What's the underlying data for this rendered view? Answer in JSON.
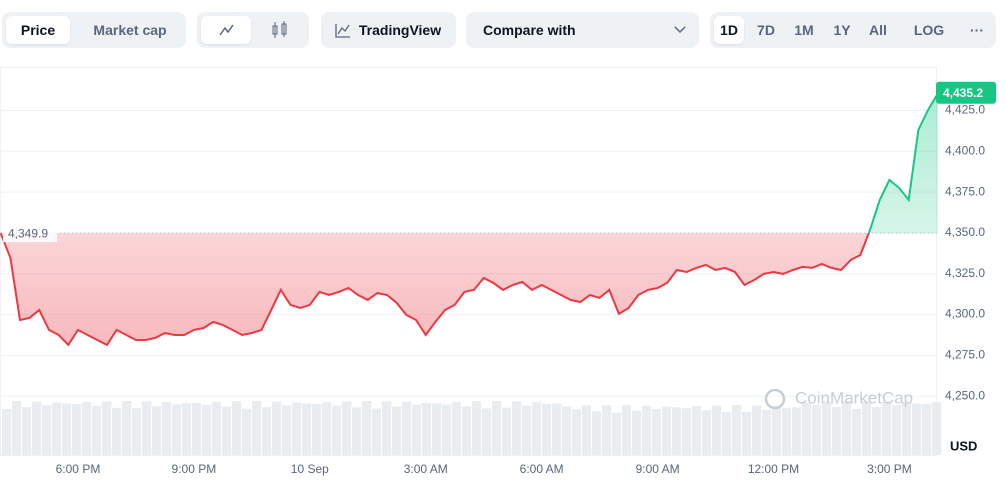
{
  "toolbar": {
    "tabs": [
      "Price",
      "Market cap"
    ],
    "tradingview": "TradingView",
    "compare": "Compare with",
    "ranges": [
      "1D",
      "7D",
      "1M",
      "1Y",
      "All",
      "LOG"
    ],
    "more": "···"
  },
  "chart_data": {
    "type": "line",
    "categories": [
      null,
      null,
      null,
      null,
      null,
      null,
      null,
      null,
      "6:00 PM",
      null,
      null,
      null,
      null,
      null,
      null,
      null,
      null,
      null,
      null,
      null,
      "9:00 PM",
      null,
      null,
      null,
      null,
      null,
      null,
      null,
      null,
      null,
      null,
      null,
      "10 Sep",
      null,
      null,
      null,
      null,
      null,
      null,
      null,
      null,
      null,
      null,
      null,
      "3:00 AM",
      null,
      null,
      null,
      null,
      null,
      null,
      null,
      null,
      null,
      null,
      null,
      "6:00 AM",
      null,
      null,
      null,
      null,
      null,
      null,
      null,
      null,
      null,
      null,
      null,
      "9:00 AM",
      null,
      null,
      null,
      null,
      null,
      null,
      null,
      null,
      null,
      null,
      null,
      "12:00 PM",
      null,
      null,
      null,
      null,
      null,
      null,
      null,
      null,
      null,
      null,
      null,
      "3:00 PM",
      null,
      null,
      null,
      null,
      null
    ],
    "series": [
      {
        "color": "#ea3943",
        "up_color": "#16c784",
        "values": [
          4349.9,
          4334.7,
          4296.7,
          4298,
          4302.8,
          4290.6,
          4287.5,
          4281.4,
          4290.6,
          4287.5,
          4284.4,
          4281.4,
          4290.6,
          4287.5,
          4284.4,
          4284.4,
          4285.7,
          4288.7,
          4287.5,
          4287.5,
          4290.6,
          4291.8,
          4295.5,
          4293.6,
          4290.6,
          4287.5,
          4288.7,
          4290.6,
          4302.8,
          4315.1,
          4305.9,
          4304.0,
          4305.9,
          4313.9,
          4312.0,
          4313.9,
          4316.3,
          4312.0,
          4309.0,
          4313.2,
          4312.0,
          4307.1,
          4299.8,
          4296.7,
          4287.5,
          4295.5,
          4302.8,
          4305.9,
          4313.9,
          4315.1,
          4322.4,
          4319.4,
          4315.1,
          4318.1,
          4320.0,
          4315.1,
          4318.1,
          4315.1,
          4312.0,
          4309.0,
          4307.7,
          4312.0,
          4310.2,
          4315.1,
          4300.5,
          4304.0,
          4312.0,
          4315.1,
          4316.3,
          4319.4,
          4327.3,
          4326.1,
          4328.6,
          4330.4,
          4327.3,
          4328.6,
          4326.1,
          4318.1,
          4321.2,
          4324.9,
          4326.1,
          4324.9,
          4327.3,
          4329.2,
          4328.6,
          4331.0,
          4328.6,
          4327.3,
          4333.5,
          4336.5,
          4352.0,
          4370.2,
          4382.5,
          4377.6,
          4370.2,
          4413.1,
          4425.4,
          4435.2
        ],
        "value_labels": [
          null,
          null,
          null,
          null,
          null,
          null,
          null,
          null,
          null,
          null,
          null,
          null,
          null,
          null,
          null,
          null,
          null,
          null,
          null,
          null,
          null,
          null,
          null,
          null,
          null,
          null,
          null,
          null,
          null,
          null,
          null,
          null,
          null,
          null,
          null,
          null,
          null,
          null,
          null,
          null,
          null,
          null,
          null,
          null,
          null,
          null,
          null,
          null,
          null,
          null,
          null,
          null,
          null,
          null,
          null,
          null,
          null,
          null,
          null,
          null,
          null,
          null,
          null,
          null,
          null,
          null,
          null,
          null,
          null,
          null,
          null,
          null,
          null,
          null,
          null,
          null,
          null,
          null,
          null,
          null,
          null,
          null,
          null,
          null,
          null,
          null,
          null,
          null,
          null,
          null,
          null,
          null,
          null,
          null,
          null,
          null,
          null,
          "4,435.2"
        ]
      }
    ],
    "baseline": {
      "value": 4349.9,
      "label": "4,349.9"
    },
    "ylim": [
      4214,
      4451
    ],
    "yticks": [
      {
        "value": 4250,
        "label": "4,250.0"
      },
      {
        "value": 4275,
        "label": "4,275.0"
      },
      {
        "value": 4300,
        "label": "4,300.0"
      },
      {
        "value": 4325,
        "label": "4,325.0"
      },
      {
        "value": 4350,
        "label": "4,350.0"
      },
      {
        "value": 4375,
        "label": "4,375.0"
      },
      {
        "value": 4400,
        "label": "4,400.0"
      },
      {
        "value": 4425,
        "label": "4,425.0"
      }
    ],
    "grid": true,
    "currency": "USD",
    "watermark": "CoinMarketCap"
  }
}
